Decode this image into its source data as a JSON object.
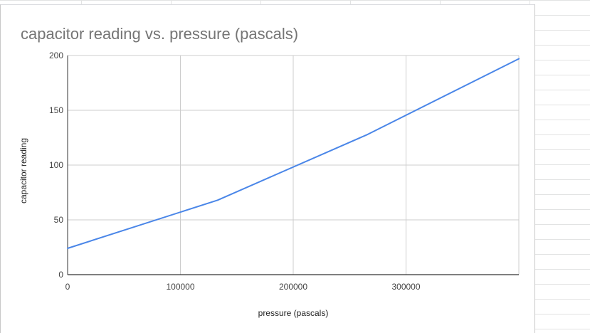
{
  "chart_data": {
    "type": "line",
    "title": "capacitor reading vs. pressure (pascals)",
    "xlabel": "pressure (pascals)",
    "ylabel": "capacitor reading",
    "xlim": [
      0,
      400000
    ],
    "ylim": [
      0,
      200
    ],
    "x_ticks": [
      0,
      100000,
      200000,
      300000
    ],
    "x_tick_labels": [
      "0",
      "100000",
      "200000",
      "300000"
    ],
    "y_ticks": [
      0,
      50,
      100,
      150,
      200
    ],
    "y_tick_labels": [
      "0",
      "50",
      "100",
      "150",
      "200"
    ],
    "grid": true,
    "legend": "none",
    "series": [
      {
        "color": "#4a86e8",
        "x": [
          0,
          133000,
          266000,
          400000
        ],
        "y": [
          24,
          68,
          128,
          197
        ]
      }
    ]
  }
}
